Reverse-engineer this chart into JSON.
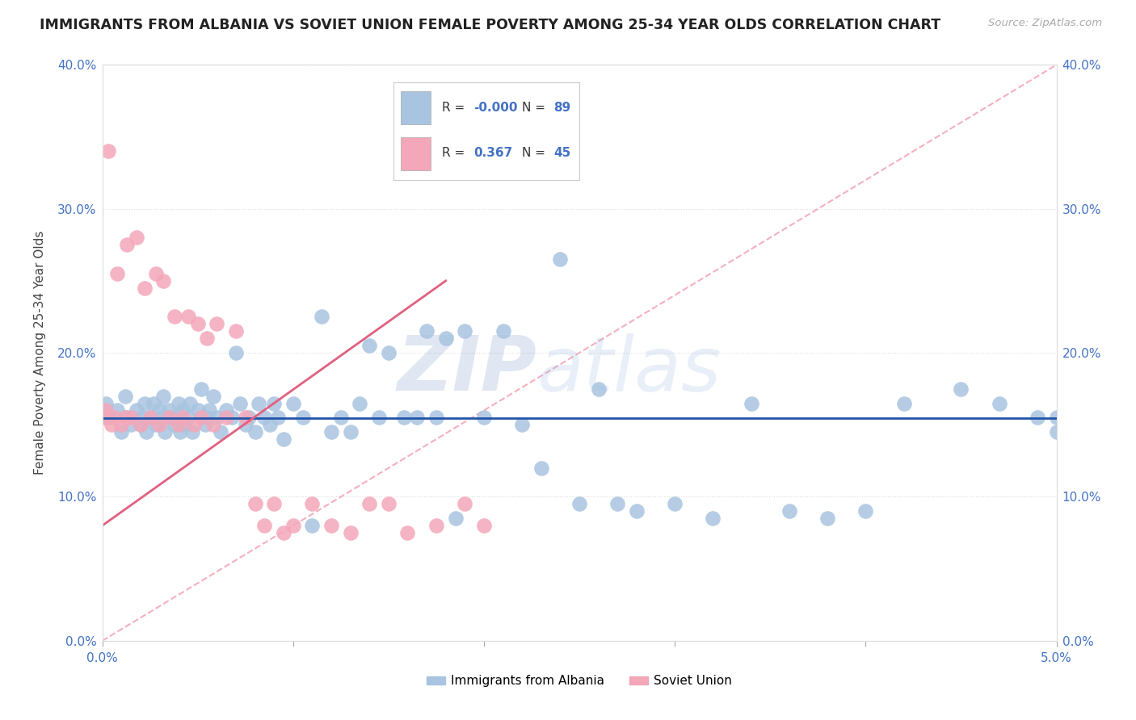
{
  "title": "IMMIGRANTS FROM ALBANIA VS SOVIET UNION FEMALE POVERTY AMONG 25-34 YEAR OLDS CORRELATION CHART",
  "source": "Source: ZipAtlas.com",
  "ylabel": "Female Poverty Among 25-34 Year Olds",
  "xlim": [
    0.0,
    0.05
  ],
  "ylim": [
    0.0,
    0.4
  ],
  "x_tick_left": "0.0%",
  "x_tick_right": "5.0%",
  "y_ticks": [
    0.0,
    0.1,
    0.2,
    0.3,
    0.4
  ],
  "y_tick_labels": [
    "0.0%",
    "10.0%",
    "20.0%",
    "30.0%",
    "40.0%"
  ],
  "albania_color": "#a8c4e0",
  "soviet_color": "#f4a7b9",
  "albania_line_color": "#2255aa",
  "soviet_line_color": "#e06080",
  "diag_line_color": "#f4a7b9",
  "legend_albania_label": "Immigrants from Albania",
  "legend_soviet_label": "Soviet Union",
  "albania_R": -0.0,
  "albania_N": 89,
  "soviet_R": 0.367,
  "soviet_N": 45,
  "watermark_zip": "ZIP",
  "watermark_atlas": "atlas",
  "background_color": "#ffffff",
  "grid_color": "#dddddd",
  "title_color": "#222222",
  "tick_color": "#4472c4",
  "ylabel_color": "#444444",
  "albania_scatter_x": [
    0.0002,
    0.0003,
    0.0008,
    0.001,
    0.0012,
    0.0013,
    0.0015,
    0.0018,
    0.002,
    0.0021,
    0.0022,
    0.0023,
    0.0025,
    0.0027,
    0.0028,
    0.003,
    0.0031,
    0.0032,
    0.0033,
    0.0035,
    0.0036,
    0.0038,
    0.004,
    0.0041,
    0.0042,
    0.0043,
    0.0045,
    0.0046,
    0.0047,
    0.005,
    0.0052,
    0.0054,
    0.0055,
    0.0056,
    0.0058,
    0.006,
    0.0062,
    0.0065,
    0.0068,
    0.007,
    0.0072,
    0.0075,
    0.0077,
    0.008,
    0.0082,
    0.0085,
    0.0088,
    0.009,
    0.0092,
    0.0095,
    0.01,
    0.0105,
    0.011,
    0.0115,
    0.012,
    0.0125,
    0.013,
    0.0135,
    0.014,
    0.0145,
    0.015,
    0.0158,
    0.0165,
    0.017,
    0.0175,
    0.018,
    0.0185,
    0.019,
    0.02,
    0.021,
    0.022,
    0.023,
    0.024,
    0.025,
    0.026,
    0.027,
    0.028,
    0.03,
    0.032,
    0.034,
    0.036,
    0.038,
    0.04,
    0.042,
    0.045,
    0.047,
    0.049,
    0.05,
    0.05
  ],
  "albania_scatter_y": [
    0.165,
    0.155,
    0.16,
    0.145,
    0.17,
    0.155,
    0.15,
    0.16,
    0.15,
    0.155,
    0.165,
    0.145,
    0.155,
    0.165,
    0.15,
    0.16,
    0.155,
    0.17,
    0.145,
    0.16,
    0.155,
    0.15,
    0.165,
    0.145,
    0.16,
    0.15,
    0.155,
    0.165,
    0.145,
    0.16,
    0.175,
    0.15,
    0.155,
    0.16,
    0.17,
    0.155,
    0.145,
    0.16,
    0.155,
    0.2,
    0.165,
    0.15,
    0.155,
    0.145,
    0.165,
    0.155,
    0.15,
    0.165,
    0.155,
    0.14,
    0.165,
    0.155,
    0.08,
    0.225,
    0.145,
    0.155,
    0.145,
    0.165,
    0.205,
    0.155,
    0.2,
    0.155,
    0.155,
    0.215,
    0.155,
    0.21,
    0.085,
    0.215,
    0.155,
    0.215,
    0.15,
    0.12,
    0.265,
    0.095,
    0.175,
    0.095,
    0.09,
    0.095,
    0.085,
    0.165,
    0.09,
    0.085,
    0.09,
    0.165,
    0.175,
    0.165,
    0.155,
    0.155,
    0.145
  ],
  "soviet_scatter_x": [
    0.0001,
    0.0002,
    0.0003,
    0.0005,
    0.0006,
    0.0008,
    0.001,
    0.0012,
    0.0013,
    0.0015,
    0.0018,
    0.002,
    0.0022,
    0.0025,
    0.0028,
    0.003,
    0.0032,
    0.0035,
    0.0038,
    0.004,
    0.0042,
    0.0045,
    0.0048,
    0.005,
    0.0052,
    0.0055,
    0.0058,
    0.006,
    0.0065,
    0.007,
    0.0075,
    0.008,
    0.0085,
    0.009,
    0.0095,
    0.01,
    0.011,
    0.012,
    0.013,
    0.014,
    0.015,
    0.016,
    0.0175,
    0.019,
    0.02
  ],
  "soviet_scatter_y": [
    0.155,
    0.16,
    0.34,
    0.15,
    0.155,
    0.255,
    0.15,
    0.155,
    0.275,
    0.155,
    0.28,
    0.15,
    0.245,
    0.155,
    0.255,
    0.15,
    0.25,
    0.155,
    0.225,
    0.15,
    0.155,
    0.225,
    0.15,
    0.22,
    0.155,
    0.21,
    0.15,
    0.22,
    0.155,
    0.215,
    0.155,
    0.095,
    0.08,
    0.095,
    0.075,
    0.08,
    0.095,
    0.08,
    0.075,
    0.095,
    0.095,
    0.075,
    0.08,
    0.095,
    0.08
  ]
}
